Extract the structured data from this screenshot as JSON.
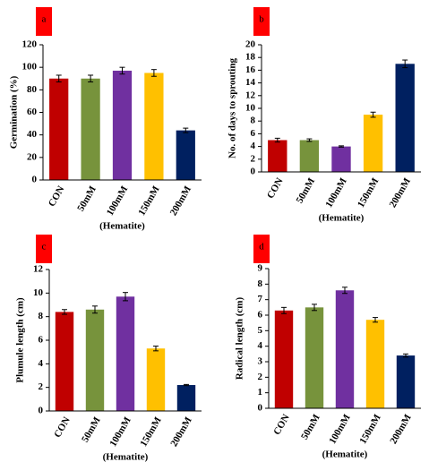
{
  "chart_data": [
    {
      "type": "bar",
      "label": "a",
      "ylabel": "Germination (%)",
      "xlabel": "(Hematite)",
      "categories": [
        "CON",
        "50mM",
        "100mM",
        "150mM",
        "200mM"
      ],
      "values": [
        90,
        90,
        97,
        95,
        44
      ],
      "errors": [
        3,
        3,
        3,
        3,
        2
      ],
      "colors": [
        "#c00000",
        "#77933c",
        "#7030a0",
        "#ffc000",
        "#002060"
      ],
      "ylim": [
        0,
        120
      ],
      "yticks": [
        0,
        20,
        40,
        60,
        80,
        100,
        120
      ]
    },
    {
      "type": "bar",
      "label": "b",
      "ylabel": "No. of days to sprouting",
      "xlabel": "(Hematite)",
      "categories": [
        "CON",
        "50mM",
        "100mM",
        "150mM",
        "200mM"
      ],
      "values": [
        5,
        5,
        4,
        9,
        17
      ],
      "errors": [
        0.3,
        0.2,
        0.1,
        0.4,
        0.6
      ],
      "colors": [
        "#c00000",
        "#77933c",
        "#7030a0",
        "#ffc000",
        "#002060"
      ],
      "ylim": [
        0,
        20
      ],
      "yticks": [
        0,
        2,
        4,
        6,
        8,
        10,
        12,
        14,
        16,
        18,
        20
      ]
    },
    {
      "type": "bar",
      "label": "c",
      "ylabel": "Plumule length (cm)",
      "xlabel": "(Hematite)",
      "categories": [
        "CON",
        "50mM",
        "100mM",
        "150mM",
        "200mM"
      ],
      "values": [
        8.4,
        8.6,
        9.7,
        5.3,
        2.2
      ],
      "errors": [
        0.2,
        0.3,
        0.35,
        0.2,
        0.05
      ],
      "colors": [
        "#c00000",
        "#77933c",
        "#7030a0",
        "#ffc000",
        "#002060"
      ],
      "ylim": [
        0,
        12
      ],
      "yticks": [
        0,
        2,
        4,
        6,
        8,
        10,
        12
      ]
    },
    {
      "type": "bar",
      "label": "d",
      "ylabel": "Radical length (cm)",
      "xlabel": "(Hematite)",
      "categories": [
        "CON",
        "50mM",
        "100mM",
        "150mM",
        "200mM"
      ],
      "values": [
        6.3,
        6.5,
        7.6,
        5.7,
        3.4
      ],
      "errors": [
        0.2,
        0.2,
        0.2,
        0.15,
        0.1
      ],
      "colors": [
        "#c00000",
        "#77933c",
        "#7030a0",
        "#ffc000",
        "#002060"
      ],
      "ylim": [
        0,
        9
      ],
      "yticks": [
        0,
        1,
        2,
        3,
        4,
        5,
        6,
        7,
        8,
        9
      ]
    }
  ]
}
